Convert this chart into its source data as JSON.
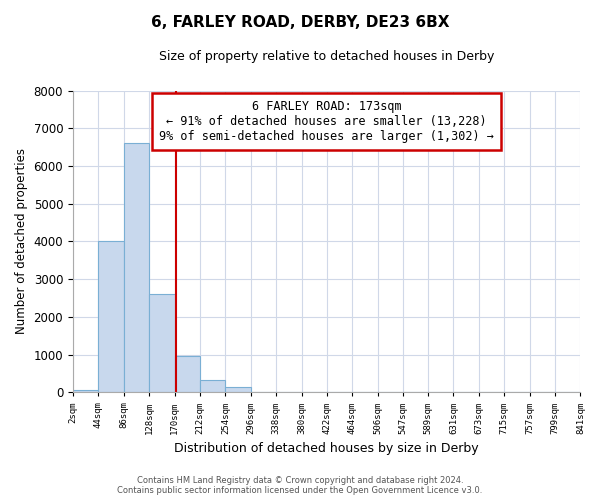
{
  "title_line1": "6, FARLEY ROAD, DERBY, DE23 6BX",
  "title_line2": "Size of property relative to detached houses in Derby",
  "xlabel": "Distribution of detached houses by size in Derby",
  "ylabel": "Number of detached properties",
  "bar_edges": [
    2,
    44,
    86,
    128,
    170,
    212,
    254,
    296,
    338,
    380,
    422,
    464,
    506,
    547,
    589,
    631,
    673,
    715,
    757,
    799,
    841
  ],
  "bar_heights": [
    60,
    4000,
    6600,
    2600,
    970,
    330,
    130,
    0,
    0,
    0,
    0,
    0,
    0,
    0,
    0,
    0,
    0,
    0,
    0,
    0
  ],
  "bar_facecolor": "#c8d8ed",
  "bar_edgecolor": "#7aafd4",
  "property_line_x": 173,
  "annotation_title": "6 FARLEY ROAD: 173sqm",
  "annotation_line1": "← 91% of detached houses are smaller (13,228)",
  "annotation_line2": "9% of semi-detached houses are larger (1,302) →",
  "annotation_box_facecolor": "#ffffff",
  "annotation_box_edgecolor": "#cc0000",
  "property_line_color": "#cc0000",
  "ylim": [
    0,
    8000
  ],
  "xlim": [
    2,
    841
  ],
  "yticks": [
    0,
    1000,
    2000,
    3000,
    4000,
    5000,
    6000,
    7000,
    8000
  ],
  "tick_labels": [
    "2sqm",
    "44sqm",
    "86sqm",
    "128sqm",
    "170sqm",
    "212sqm",
    "254sqm",
    "296sqm",
    "338sqm",
    "380sqm",
    "422sqm",
    "464sqm",
    "506sqm",
    "547sqm",
    "589sqm",
    "631sqm",
    "673sqm",
    "715sqm",
    "757sqm",
    "799sqm",
    "841sqm"
  ],
  "tick_positions": [
    2,
    44,
    86,
    128,
    170,
    212,
    254,
    296,
    338,
    380,
    422,
    464,
    506,
    547,
    589,
    631,
    673,
    715,
    757,
    799,
    841
  ],
  "footer_line1": "Contains HM Land Registry data © Crown copyright and database right 2024.",
  "footer_line2": "Contains public sector information licensed under the Open Government Licence v3.0.",
  "bg_color": "#ffffff",
  "grid_color": "#d0d8e8"
}
